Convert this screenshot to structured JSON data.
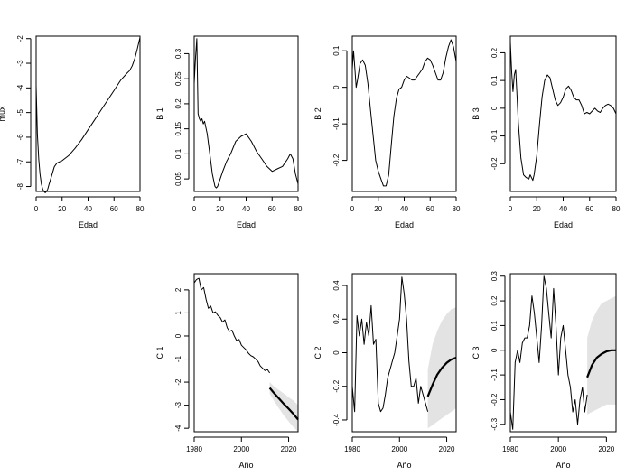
{
  "chart_data": [
    {
      "type": "line",
      "ylabel": "mux",
      "xlabel": "Edad",
      "xlim": [
        0,
        80
      ],
      "ylim": [
        -8.2,
        -1.9
      ],
      "xticks": [
        0,
        20,
        40,
        60,
        80
      ],
      "yticks": [
        -8,
        -7,
        -6,
        -5,
        -4,
        -3,
        -2
      ],
      "series": [
        {
          "x": [
            0,
            1,
            2,
            3,
            4,
            5,
            6,
            7,
            8,
            9,
            10,
            12,
            14,
            16,
            18,
            20,
            25,
            30,
            35,
            40,
            45,
            50,
            55,
            60,
            65,
            70,
            72,
            74,
            76,
            78,
            80
          ],
          "y": [
            -3.9,
            -5.9,
            -6.9,
            -7.5,
            -7.9,
            -8.1,
            -8.2,
            -8.25,
            -8.2,
            -8.1,
            -7.9,
            -7.55,
            -7.2,
            -7.05,
            -7.0,
            -6.95,
            -6.75,
            -6.45,
            -6.1,
            -5.7,
            -5.3,
            -4.9,
            -4.5,
            -4.1,
            -3.7,
            -3.4,
            -3.3,
            -3.1,
            -2.8,
            -2.4,
            -1.95
          ]
        }
      ]
    },
    {
      "type": "line",
      "ylabel": "B 1",
      "xlabel": "Edad",
      "xlim": [
        0,
        80
      ],
      "ylim": [
        0.025,
        0.335
      ],
      "xticks": [
        0,
        20,
        40,
        60,
        80
      ],
      "yticks": [
        0.05,
        0.1,
        0.15,
        0.2,
        0.25,
        0.3
      ],
      "series": [
        {
          "x": [
            0,
            1,
            2,
            3,
            4,
            5,
            6,
            7,
            8,
            10,
            12,
            14,
            16,
            17,
            18,
            20,
            22,
            25,
            28,
            32,
            36,
            40,
            44,
            48,
            52,
            56,
            60,
            64,
            68,
            72,
            74,
            76,
            78,
            80
          ],
          "y": [
            0.24,
            0.29,
            0.33,
            0.18,
            0.17,
            0.165,
            0.17,
            0.16,
            0.165,
            0.14,
            0.1,
            0.06,
            0.035,
            0.032,
            0.035,
            0.05,
            0.065,
            0.085,
            0.1,
            0.125,
            0.135,
            0.14,
            0.125,
            0.105,
            0.09,
            0.075,
            0.065,
            0.07,
            0.075,
            0.09,
            0.1,
            0.09,
            0.06,
            0.04
          ]
        }
      ]
    },
    {
      "type": "line",
      "ylabel": "B 2",
      "xlabel": "Edad",
      "xlim": [
        0,
        80
      ],
      "ylim": [
        -0.285,
        0.14
      ],
      "xticks": [
        0,
        20,
        40,
        60,
        80
      ],
      "yticks": [
        -0.2,
        -0.1,
        0.0,
        0.1
      ],
      "series": [
        {
          "x": [
            0,
            1,
            2,
            3,
            4,
            6,
            8,
            10,
            12,
            14,
            16,
            18,
            20,
            22,
            24,
            26,
            28,
            30,
            32,
            34,
            36,
            38,
            40,
            42,
            44,
            46,
            48,
            50,
            52,
            54,
            56,
            58,
            60,
            62,
            64,
            66,
            68,
            70,
            72,
            74,
            76,
            78,
            80
          ],
          "y": [
            0.05,
            0.1,
            0.05,
            0.0,
            0.02,
            0.065,
            0.075,
            0.06,
            0.01,
            -0.06,
            -0.13,
            -0.2,
            -0.23,
            -0.25,
            -0.27,
            -0.27,
            -0.24,
            -0.16,
            -0.08,
            -0.03,
            -0.005,
            0.0,
            0.02,
            0.03,
            0.025,
            0.02,
            0.02,
            0.03,
            0.04,
            0.05,
            0.07,
            0.08,
            0.075,
            0.06,
            0.04,
            0.02,
            0.02,
            0.04,
            0.08,
            0.11,
            0.13,
            0.11,
            0.07
          ]
        }
      ]
    },
    {
      "type": "line",
      "ylabel": "B 3",
      "xlabel": "Edad",
      "xlim": [
        0,
        80
      ],
      "ylim": [
        -0.3,
        0.26
      ],
      "xticks": [
        0,
        20,
        40,
        60,
        80
      ],
      "yticks": [
        -0.2,
        -0.1,
        0.0,
        0.1,
        0.2
      ],
      "series": [
        {
          "x": [
            0,
            1,
            2,
            3,
            4,
            5,
            6,
            8,
            10,
            12,
            14,
            15,
            16,
            17,
            18,
            20,
            22,
            24,
            26,
            28,
            30,
            32,
            34,
            36,
            38,
            40,
            42,
            44,
            46,
            48,
            50,
            52,
            54,
            56,
            58,
            60,
            62,
            64,
            66,
            68,
            70,
            72,
            74,
            76,
            78,
            80
          ],
          "y": [
            0.24,
            0.13,
            0.06,
            0.12,
            0.14,
            0.05,
            -0.05,
            -0.18,
            -0.24,
            -0.25,
            -0.255,
            -0.24,
            -0.25,
            -0.26,
            -0.24,
            -0.17,
            -0.06,
            0.04,
            0.1,
            0.12,
            0.11,
            0.07,
            0.03,
            0.01,
            0.02,
            0.04,
            0.07,
            0.08,
            0.065,
            0.04,
            0.03,
            0.03,
            0.01,
            -0.02,
            -0.015,
            -0.02,
            -0.01,
            0.0,
            -0.01,
            -0.015,
            0.0,
            0.01,
            0.015,
            0.01,
            0.0,
            -0.02
          ]
        }
      ]
    },
    {
      "type": "line",
      "ylabel": "C 1",
      "xlabel": "Año",
      "xlim": [
        1980,
        2024
      ],
      "ylim": [
        -4.15,
        2.7
      ],
      "xticks": [
        1980,
        2000,
        2020
      ],
      "yticks": [
        -4,
        -3,
        -2,
        -1,
        0,
        1,
        2
      ],
      "series": [
        {
          "x": [
            1980,
            1981,
            1982,
            1983,
            1984,
            1985,
            1986,
            1987,
            1988,
            1989,
            1990,
            1991,
            1992,
            1993,
            1994,
            1995,
            1996,
            1997,
            1998,
            1999,
            2000,
            2001,
            2002,
            2003,
            2004,
            2005,
            2006,
            2007,
            2008,
            2009,
            2010,
            2011,
            2012
          ],
          "y": [
            2.3,
            2.45,
            2.5,
            2.0,
            2.1,
            1.6,
            1.2,
            1.3,
            1.0,
            1.05,
            0.9,
            0.8,
            0.6,
            0.7,
            0.35,
            0.2,
            0.25,
            0.0,
            -0.2,
            -0.15,
            -0.4,
            -0.5,
            -0.6,
            -0.75,
            -0.85,
            -0.9,
            -1.0,
            -1.1,
            -1.3,
            -1.4,
            -1.5,
            -1.45,
            -1.6
          ]
        },
        {
          "name": "forecast",
          "x": [
            2012,
            2014,
            2016,
            2018,
            2020,
            2022,
            2024
          ],
          "y": [
            -2.25,
            -2.5,
            -2.72,
            -2.95,
            -3.15,
            -3.38,
            -3.62
          ],
          "lower": [
            -2.5,
            -2.85,
            -3.15,
            -3.45,
            -3.7,
            -3.95,
            -4.15
          ],
          "upper": [
            -2.0,
            -2.2,
            -2.35,
            -2.5,
            -2.65,
            -2.8,
            -3.0
          ]
        }
      ]
    },
    {
      "type": "line",
      "ylabel": "C 2",
      "xlabel": "Año",
      "xlim": [
        1980,
        2024
      ],
      "ylim": [
        -0.47,
        0.47
      ],
      "xticks": [
        1980,
        2000,
        2020
      ],
      "yticks": [
        -0.4,
        -0.2,
        0.0,
        0.2,
        0.4
      ],
      "series": [
        {
          "x": [
            1980,
            1981,
            1982,
            1983,
            1984,
            1985,
            1986,
            1987,
            1988,
            1989,
            1990,
            1991,
            1992,
            1993,
            1994,
            1995,
            1996,
            1997,
            1998,
            1999,
            2000,
            2001,
            2002,
            2003,
            2004,
            2005,
            2006,
            2007,
            2008,
            2009,
            2010,
            2011,
            2012
          ],
          "y": [
            -0.2,
            -0.35,
            0.22,
            0.1,
            0.2,
            0.05,
            0.18,
            0.1,
            0.28,
            0.05,
            0.08,
            -0.3,
            -0.35,
            -0.33,
            -0.25,
            -0.15,
            -0.1,
            -0.05,
            0.0,
            0.1,
            0.2,
            0.45,
            0.35,
            0.2,
            -0.05,
            -0.2,
            -0.2,
            -0.15,
            -0.3,
            -0.2,
            -0.25,
            -0.3,
            -0.35
          ]
        },
        {
          "name": "forecast",
          "x": [
            2012,
            2014,
            2016,
            2018,
            2020,
            2022,
            2024
          ],
          "y": [
            -0.26,
            -0.19,
            -0.13,
            -0.09,
            -0.06,
            -0.04,
            -0.03
          ],
          "lower": [
            -0.45,
            -0.43,
            -0.41,
            -0.39,
            -0.37,
            -0.35,
            -0.33
          ],
          "upper": [
            -0.1,
            0.05,
            0.13,
            0.19,
            0.23,
            0.26,
            0.27
          ]
        }
      ]
    },
    {
      "type": "line",
      "ylabel": "C 3",
      "xlabel": "Año",
      "xlim": [
        1980,
        2024
      ],
      "ylim": [
        -0.33,
        0.31
      ],
      "xticks": [
        1980,
        2000,
        2020
      ],
      "yticks": [
        -0.3,
        -0.2,
        -0.1,
        0.0,
        0.1,
        0.2,
        0.3
      ],
      "series": [
        {
          "x": [
            1980,
            1981,
            1982,
            1983,
            1984,
            1985,
            1986,
            1987,
            1988,
            1989,
            1990,
            1991,
            1992,
            1993,
            1994,
            1995,
            1996,
            1997,
            1998,
            1999,
            2000,
            2001,
            2002,
            2003,
            2004,
            2005,
            2006,
            2007,
            2008,
            2009,
            2010,
            2011,
            2012
          ],
          "y": [
            -0.25,
            -0.32,
            -0.05,
            0.0,
            -0.05,
            0.03,
            0.05,
            0.05,
            0.1,
            0.22,
            0.15,
            0.05,
            -0.05,
            0.1,
            0.3,
            0.25,
            0.15,
            0.05,
            0.25,
            0.1,
            -0.1,
            0.05,
            0.1,
            0.0,
            -0.1,
            -0.15,
            -0.25,
            -0.2,
            -0.3,
            -0.2,
            -0.15,
            -0.25,
            -0.18
          ]
        },
        {
          "name": "forecast",
          "x": [
            2012,
            2014,
            2016,
            2018,
            2020,
            2022,
            2024
          ],
          "y": [
            -0.11,
            -0.06,
            -0.03,
            -0.015,
            -0.005,
            0.0,
            0.0
          ],
          "lower": [
            -0.26,
            -0.25,
            -0.24,
            -0.23,
            -0.22,
            -0.22,
            -0.22
          ],
          "upper": [
            0.05,
            0.12,
            0.16,
            0.19,
            0.2,
            0.21,
            0.22
          ]
        }
      ]
    }
  ]
}
